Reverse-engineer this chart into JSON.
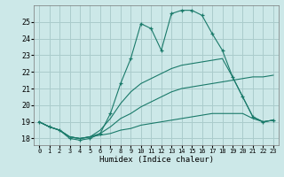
{
  "xlabel": "Humidex (Indice chaleur)",
  "bg_color": "#cce8e8",
  "grid_color": "#aacccc",
  "line_color": "#1a7a6a",
  "x_ticks": [
    0,
    1,
    2,
    3,
    4,
    5,
    6,
    7,
    8,
    9,
    10,
    11,
    12,
    13,
    14,
    15,
    16,
    17,
    18,
    19,
    20,
    21,
    22,
    23
  ],
  "y_ticks": [
    18,
    19,
    20,
    21,
    22,
    23,
    24,
    25
  ],
  "ylim": [
    17.6,
    26.0
  ],
  "xlim": [
    -0.5,
    23.5
  ],
  "series": [
    {
      "x": [
        0,
        1,
        2,
        3,
        4,
        5,
        6,
        7,
        8,
        9,
        10,
        11,
        12,
        13,
        14,
        15,
        16,
        17,
        18,
        19,
        20,
        21,
        22,
        23
      ],
      "y": [
        19.0,
        18.7,
        18.5,
        18.0,
        17.9,
        18.0,
        18.3,
        19.5,
        21.3,
        22.8,
        24.9,
        24.6,
        23.3,
        25.5,
        25.7,
        25.7,
        25.4,
        24.3,
        23.3,
        21.7,
        20.5,
        19.3,
        19.0,
        19.1
      ],
      "has_markers": true
    },
    {
      "x": [
        0,
        1,
        2,
        3,
        4,
        5,
        6,
        7,
        8,
        9,
        10,
        11,
        12,
        13,
        14,
        15,
        16,
        17,
        18,
        19,
        20,
        21,
        22,
        23
      ],
      "y": [
        19.0,
        18.7,
        18.5,
        18.1,
        18.0,
        18.1,
        18.5,
        19.2,
        20.1,
        20.8,
        21.3,
        21.6,
        21.9,
        22.2,
        22.4,
        22.5,
        22.6,
        22.7,
        22.8,
        21.7,
        20.5,
        19.3,
        19.0,
        19.1
      ],
      "has_markers": false
    },
    {
      "x": [
        0,
        1,
        2,
        3,
        4,
        5,
        6,
        7,
        8,
        9,
        10,
        11,
        12,
        13,
        14,
        15,
        16,
        17,
        18,
        19,
        20,
        21,
        22,
        23
      ],
      "y": [
        19.0,
        18.7,
        18.5,
        18.1,
        18.0,
        18.1,
        18.3,
        18.7,
        19.2,
        19.5,
        19.9,
        20.2,
        20.5,
        20.8,
        21.0,
        21.1,
        21.2,
        21.3,
        21.4,
        21.5,
        21.6,
        21.7,
        21.7,
        21.8
      ],
      "has_markers": false
    },
    {
      "x": [
        0,
        1,
        2,
        3,
        4,
        5,
        6,
        7,
        8,
        9,
        10,
        11,
        12,
        13,
        14,
        15,
        16,
        17,
        18,
        19,
        20,
        21,
        22,
        23
      ],
      "y": [
        19.0,
        18.7,
        18.5,
        18.1,
        18.0,
        18.1,
        18.2,
        18.3,
        18.5,
        18.6,
        18.8,
        18.9,
        19.0,
        19.1,
        19.2,
        19.3,
        19.4,
        19.5,
        19.5,
        19.5,
        19.5,
        19.2,
        19.0,
        19.1
      ],
      "has_markers": false
    }
  ]
}
